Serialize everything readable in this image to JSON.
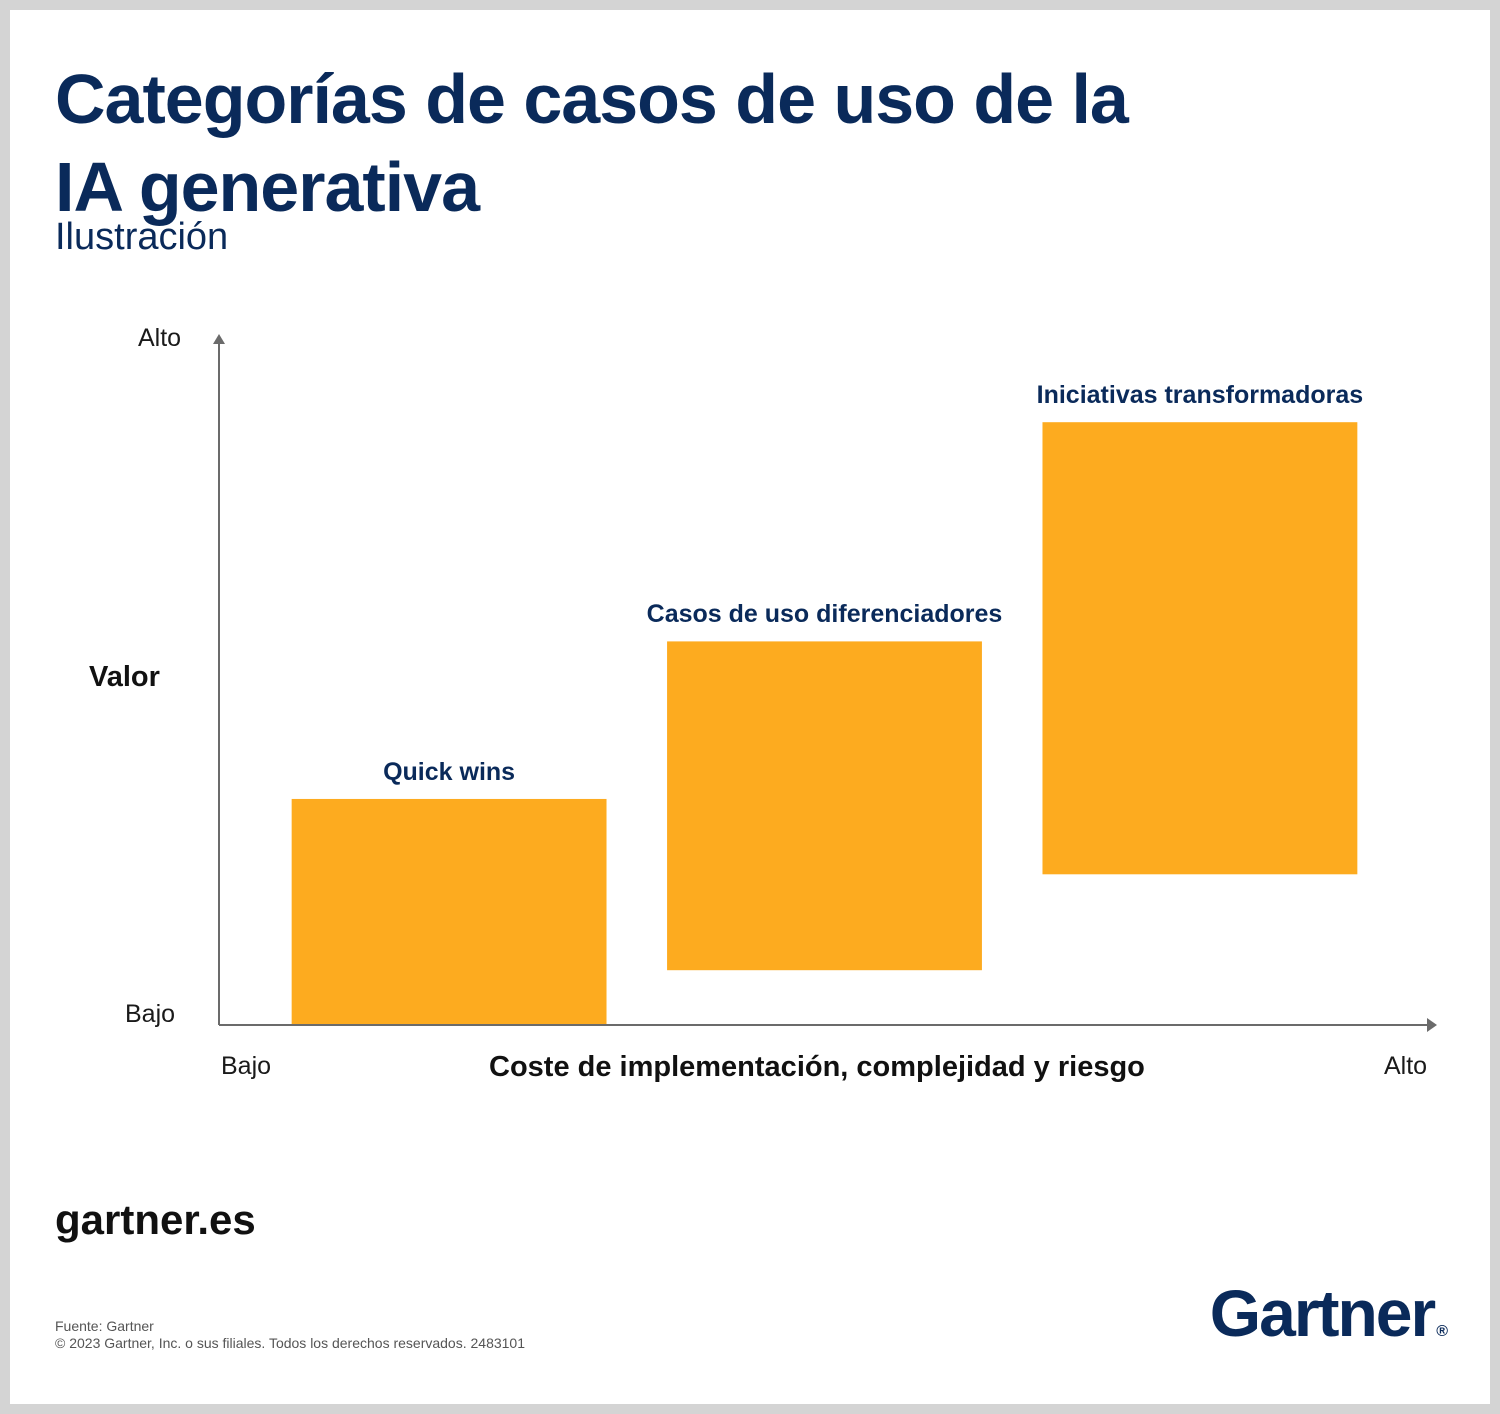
{
  "title": "Categorías de casos de uso de la IA generativa",
  "subtitle": "Ilustración",
  "diagram": {
    "y_axis": {
      "label": "Valor",
      "high": "Alto",
      "low": "Bajo"
    },
    "x_axis": {
      "label": "Coste de implementación, complejidad y riesgo",
      "low": "Bajo",
      "high": "Alto"
    },
    "categories": [
      {
        "id": "quick-wins",
        "label": "Quick wins",
        "value": [
          0,
          0.33
        ],
        "cost": [
          0.06,
          0.32
        ]
      },
      {
        "id": "casos-diferenciadores",
        "label": "Casos de uso diferenciadores",
        "value": [
          0.08,
          0.56
        ],
        "cost": [
          0.37,
          0.63
        ]
      },
      {
        "id": "iniciativas-transformadoras",
        "label": "Iniciativas transformadoras",
        "value": [
          0.22,
          0.88
        ],
        "cost": [
          0.68,
          0.94
        ]
      }
    ],
    "bar_color": "#fdab1f"
  },
  "footer": {
    "site": "gartner.es",
    "source": "Fuente: Gartner",
    "copyright": "© 2023 Gartner, Inc. o sus filiales. Todos los derechos reservados. 2483101",
    "logo": "Gartner",
    "logo_mark": "®"
  }
}
